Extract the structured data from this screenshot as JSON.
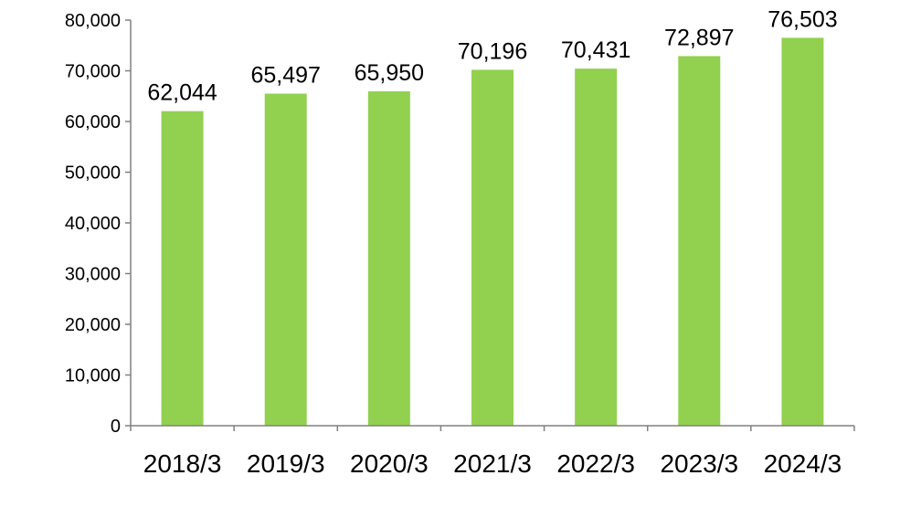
{
  "chart_data": {
    "type": "bar",
    "categories": [
      "2018/3",
      "2019/3",
      "2020/3",
      "2021/3",
      "2022/3",
      "2023/3",
      "2024/3"
    ],
    "values": [
      62044,
      65497,
      65950,
      70196,
      70431,
      72897,
      76503
    ],
    "data_labels": [
      "62,044",
      "65,497",
      "65,950",
      "70,196",
      "70,431",
      "72,897",
      "76,503"
    ],
    "y_ticks": [
      "0",
      "10,000",
      "20,000",
      "30,000",
      "40,000",
      "50,000",
      "60,000",
      "70,000",
      "80,000"
    ],
    "y_tick_values": [
      0,
      10000,
      20000,
      30000,
      40000,
      50000,
      60000,
      70000,
      80000
    ],
    "ylim": [
      0,
      80000
    ],
    "grid": false,
    "legend": "none",
    "bar_color": "#92D050",
    "axis_color": "#808080",
    "title": "",
    "xlabel": "",
    "ylabel": ""
  }
}
